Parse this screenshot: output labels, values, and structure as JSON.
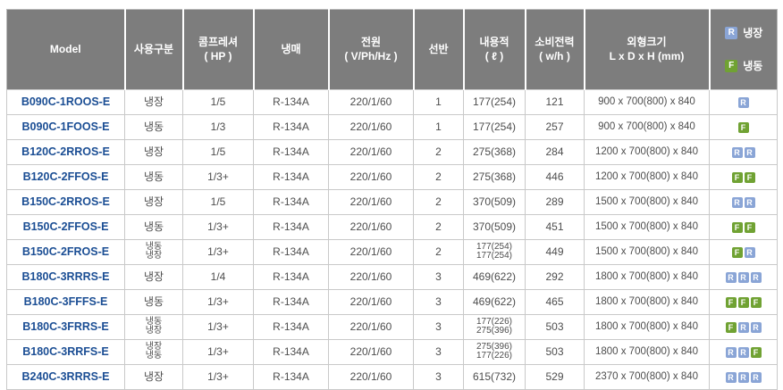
{
  "colors": {
    "header_bg": "#7d7d7d",
    "header_text": "#ffffff",
    "model_text": "#1b4e94",
    "body_text": "#4d4d4d",
    "badge_refrigerator": "#8aa5d6",
    "badge_freezer": "#70a233",
    "border": "#c9c9c9"
  },
  "chart_data": {
    "type": "table",
    "columns": [
      {
        "key": "model",
        "label": "Model"
      },
      {
        "key": "usage",
        "label": "사용구분"
      },
      {
        "key": "hp",
        "label": "콤프레셔\n( HP )"
      },
      {
        "key": "refrigerant",
        "label": "냉매"
      },
      {
        "key": "power",
        "label": "전원\n( V/Ph/Hz )"
      },
      {
        "key": "shelves",
        "label": "선반"
      },
      {
        "key": "capacity",
        "label": "내용적\n( ℓ )"
      },
      {
        "key": "watt",
        "label": "소비전력\n( w/h )"
      },
      {
        "key": "size",
        "label": "외형크기\nL x D x H (mm)"
      }
    ],
    "legend": {
      "r_badge": "R",
      "r_label": "냉장",
      "f_badge": "F",
      "f_label": "냉동"
    },
    "rows": [
      {
        "model": "B090C-1ROOS-E",
        "usage": [
          "냉장"
        ],
        "hp": "1/5",
        "refrigerant": "R-134A",
        "power": "220/1/60",
        "shelves": "1",
        "capacity": [
          "177(254)"
        ],
        "watt": "121",
        "size": "900 x 700(800) x 840",
        "badges": [
          "R"
        ]
      },
      {
        "model": "B090C-1FOOS-E",
        "usage": [
          "냉동"
        ],
        "hp": "1/3",
        "refrigerant": "R-134A",
        "power": "220/1/60",
        "shelves": "1",
        "capacity": [
          "177(254)"
        ],
        "watt": "257",
        "size": "900 x 700(800) x 840",
        "badges": [
          "F"
        ]
      },
      {
        "model": "B120C-2RROS-E",
        "usage": [
          "냉장"
        ],
        "hp": "1/5",
        "refrigerant": "R-134A",
        "power": "220/1/60",
        "shelves": "2",
        "capacity": [
          "275(368)"
        ],
        "watt": "284",
        "size": "1200 x 700(800) x 840",
        "badges": [
          "R",
          "R"
        ]
      },
      {
        "model": "B120C-2FFOS-E",
        "usage": [
          "냉동"
        ],
        "hp": "1/3+",
        "refrigerant": "R-134A",
        "power": "220/1/60",
        "shelves": "2",
        "capacity": [
          "275(368)"
        ],
        "watt": "446",
        "size": "1200 x 700(800) x 840",
        "badges": [
          "F",
          "F"
        ]
      },
      {
        "model": "B150C-2RROS-E",
        "usage": [
          "냉장"
        ],
        "hp": "1/5",
        "refrigerant": "R-134A",
        "power": "220/1/60",
        "shelves": "2",
        "capacity": [
          "370(509)"
        ],
        "watt": "289",
        "size": "1500 x 700(800) x 840",
        "badges": [
          "R",
          "R"
        ]
      },
      {
        "model": "B150C-2FFOS-E",
        "usage": [
          "냉동"
        ],
        "hp": "1/3+",
        "refrigerant": "R-134A",
        "power": "220/1/60",
        "shelves": "2",
        "capacity": [
          "370(509)"
        ],
        "watt": "451",
        "size": "1500 x 700(800) x 840",
        "badges": [
          "F",
          "F"
        ]
      },
      {
        "model": "B150C-2FROS-E",
        "usage": [
          "냉동",
          "냉장"
        ],
        "hp": "1/3+",
        "refrigerant": "R-134A",
        "power": "220/1/60",
        "shelves": "2",
        "capacity": [
          "177(254)",
          "177(254)"
        ],
        "watt": "449",
        "size": "1500 x 700(800) x 840",
        "badges": [
          "F",
          "R"
        ]
      },
      {
        "model": "B180C-3RRRS-E",
        "usage": [
          "냉장"
        ],
        "hp": "1/4",
        "refrigerant": "R-134A",
        "power": "220/1/60",
        "shelves": "3",
        "capacity": [
          "469(622)"
        ],
        "watt": "292",
        "size": "1800 x 700(800) x 840",
        "badges": [
          "R",
          "R",
          "R"
        ]
      },
      {
        "model": "B180C-3FFFS-E",
        "usage": [
          "냉동"
        ],
        "hp": "1/3+",
        "refrigerant": "R-134A",
        "power": "220/1/60",
        "shelves": "3",
        "capacity": [
          "469(622)"
        ],
        "watt": "465",
        "size": "1800 x 700(800) x 840",
        "badges": [
          "F",
          "F",
          "F"
        ]
      },
      {
        "model": "B180C-3FRRS-E",
        "usage": [
          "냉동",
          "냉장"
        ],
        "hp": "1/3+",
        "refrigerant": "R-134A",
        "power": "220/1/60",
        "shelves": "3",
        "capacity": [
          "177(226)",
          "275(396)"
        ],
        "watt": "503",
        "size": "1800 x 700(800) x 840",
        "badges": [
          "F",
          "R",
          "R"
        ]
      },
      {
        "model": "B180C-3RRFS-E",
        "usage": [
          "냉장",
          "냉동"
        ],
        "hp": "1/3+",
        "refrigerant": "R-134A",
        "power": "220/1/60",
        "shelves": "3",
        "capacity": [
          "275(396)",
          "177(226)"
        ],
        "watt": "503",
        "size": "1800 x 700(800) x 840",
        "badges": [
          "R",
          "R",
          "F"
        ]
      },
      {
        "model": "B240C-3RRRS-E",
        "usage": [
          "냉장"
        ],
        "hp": "1/3+",
        "refrigerant": "R-134A",
        "power": "220/1/60",
        "shelves": "3",
        "capacity": [
          "615(732)"
        ],
        "watt": "529",
        "size": "2370 x 700(800) x 840",
        "badges": [
          "R",
          "R",
          "R"
        ]
      }
    ]
  }
}
